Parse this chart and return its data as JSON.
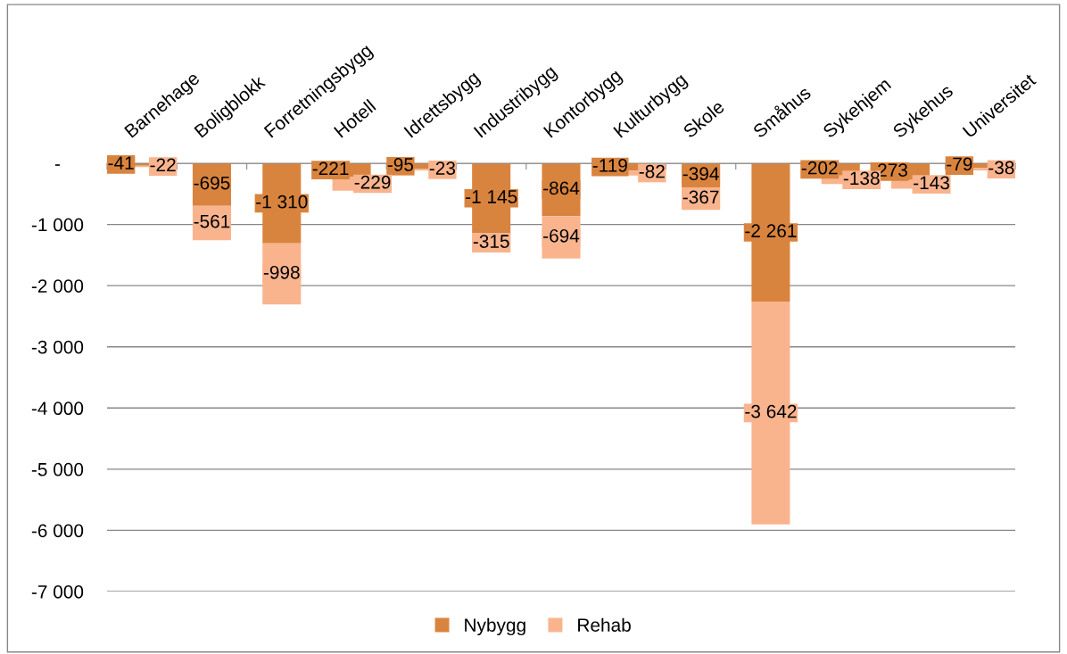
{
  "chart_data": {
    "type": "bar",
    "stacked": true,
    "categories": [
      "Barnehage",
      "Boligblokk",
      "Forretningsbygg",
      "Hotell",
      "Idrettsbygg",
      "Industribygg",
      "Kontorbygg",
      "Kulturbygg",
      "Skole",
      "Småhus",
      "Sykehjem",
      "Sykehus",
      "Universitet"
    ],
    "series": [
      {
        "name": "Nybygg",
        "color": "#d9843e",
        "values": [
          -41,
          -695,
          -1310,
          -221,
          -95,
          -1145,
          -864,
          -119,
          -394,
          -2261,
          -202,
          -273,
          -79
        ],
        "value_labels": [
          "-41",
          "-695",
          "-1 310",
          "-221",
          "-95",
          "-1 145",
          "-864",
          "-119",
          "-394",
          "-2 261",
          "-202",
          "-273",
          "-79"
        ]
      },
      {
        "name": "Rehab",
        "color": "#f9b48e",
        "values": [
          -22,
          -561,
          -998,
          -229,
          -23,
          -315,
          -694,
          -82,
          -367,
          -3642,
          -138,
          -143,
          -38
        ],
        "value_labels": [
          "-22",
          "-561",
          "-998",
          "-229",
          "-23",
          "-315",
          "-694",
          "-82",
          "-367",
          "-3 642",
          "-138",
          "-143",
          "-38"
        ]
      }
    ],
    "ylim": [
      -7000,
      0
    ],
    "yticks": [
      {
        "value": -7000,
        "label": "-7 000"
      },
      {
        "value": -6000,
        "label": "-6 000"
      },
      {
        "value": -5000,
        "label": "-5 000"
      },
      {
        "value": -4000,
        "label": "-4 000"
      },
      {
        "value": -3000,
        "label": "-3 000"
      },
      {
        "value": -2000,
        "label": "-2 000"
      },
      {
        "value": -1000,
        "label": "-1 000"
      },
      {
        "value": 0,
        "label": "-"
      }
    ],
    "grid": "y",
    "legend": "bottom"
  }
}
